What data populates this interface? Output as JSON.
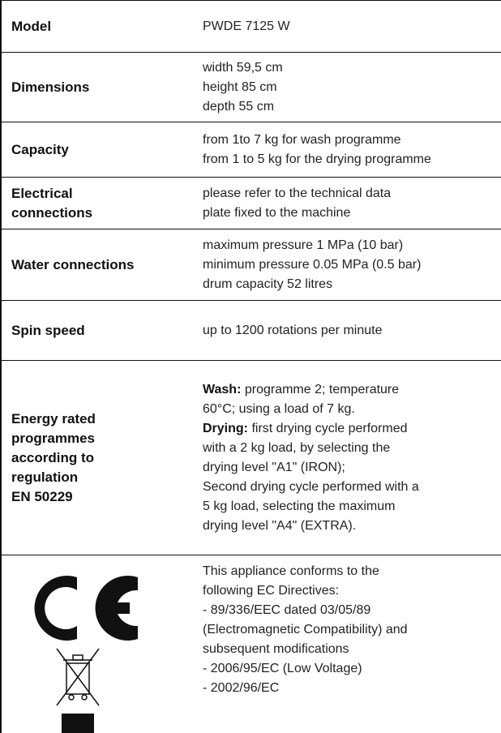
{
  "table": {
    "rows": [
      {
        "label": [
          "Model"
        ],
        "value": [
          "PWDE 7125 W"
        ]
      },
      {
        "label": [
          "Dimensions"
        ],
        "value": [
          "width 59,5 cm",
          "height 85 cm",
          "depth 55 cm"
        ]
      },
      {
        "label": [
          "Capacity"
        ],
        "value": [
          "from 1to 7 kg for wash programme",
          "from 1 to 5 kg for the drying programme"
        ]
      },
      {
        "label": [
          "Electrical",
          "connections"
        ],
        "value": [
          "please refer to the technical data",
          "plate fixed to the machine"
        ]
      },
      {
        "label": [
          "Water connections"
        ],
        "value": [
          "maximum pressure 1 MPa (10 bar)",
          "minimum pressure 0.05 MPa (0.5 bar)",
          "drum capacity 52 litres"
        ]
      },
      {
        "label": [
          "Spin speed"
        ],
        "value": [
          "up to 1200 rotations per minute"
        ]
      },
      {
        "label": [
          "Energy rated",
          "programmes",
          "according to",
          "regulation",
          "EN 50229"
        ],
        "value": [
          {
            "bold": "Wash:",
            "text": " programme 2; temperature"
          },
          "60°C; using a load of 7 kg.",
          {
            "bold": "Drying:",
            "text": " first drying cycle performed"
          },
          "with a 2 kg load, by selecting the",
          "drying level \"A1\" (IRON);",
          "Second drying cycle performed with a",
          "5 kg load, selecting the maximum",
          "drying level \"A4\" (EXTRA)."
        ]
      },
      {
        "value": [
          "This appliance conforms to the",
          "following EC Directives:",
          "- 89/336/EEC dated 03/05/89",
          "(Electromagnetic Compatibility) and",
          "subsequent modifications",
          "- 2006/95/EC (Low Voltage)",
          "- 2002/96/EC"
        ]
      }
    ]
  }
}
